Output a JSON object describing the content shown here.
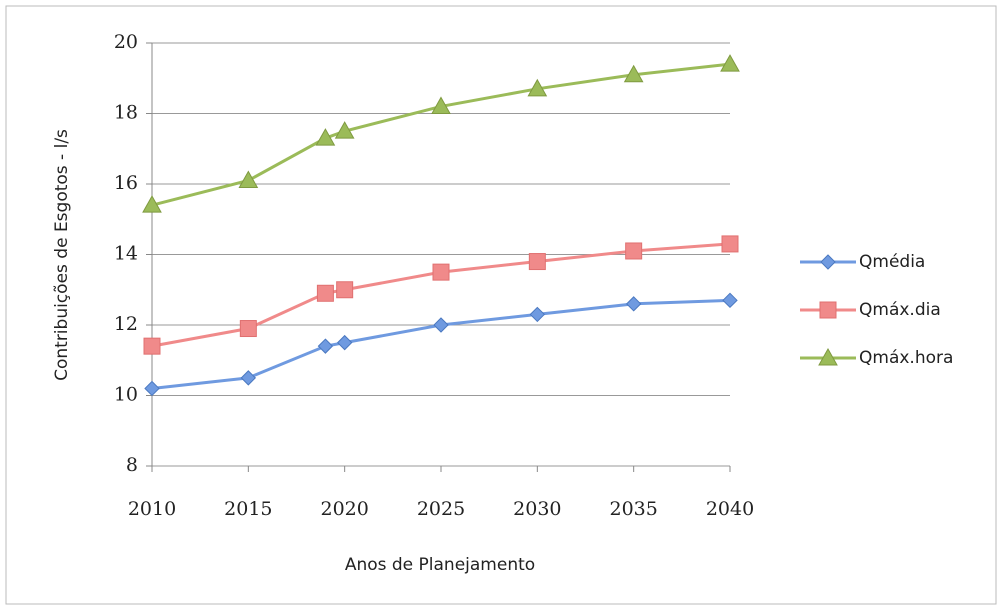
{
  "chart_data": {
    "type": "line",
    "y_label": "Contribuições de Esgotos - l/s",
    "x_label": "Anos de Planejamento",
    "x": [
      2010,
      2015,
      2019,
      2020,
      2025,
      2030,
      2035,
      2040
    ],
    "series": [
      {
        "name": "Qmédia",
        "color": "#6f9ae0",
        "marker": "diamond",
        "values": [
          10.2,
          10.5,
          11.4,
          11.5,
          12.0,
          12.3,
          12.6,
          12.7
        ]
      },
      {
        "name": "Qmáx.dia",
        "color": "#f08a8a",
        "marker": "square",
        "values": [
          11.4,
          11.9,
          12.9,
          13.0,
          13.5,
          13.8,
          14.1,
          14.3
        ]
      },
      {
        "name": "Qmáx.hora",
        "color": "#9bbb59",
        "marker": "triangle",
        "values": [
          15.4,
          16.1,
          17.3,
          17.5,
          18.2,
          18.7,
          19.1,
          19.4
        ]
      }
    ],
    "xlim": [
      2010,
      2040
    ],
    "xticks": [
      2010,
      2015,
      2020,
      2025,
      2030,
      2035,
      2040
    ],
    "ylim": [
      8,
      20
    ],
    "yticks": [
      8,
      10,
      12,
      14,
      16,
      18,
      20
    ],
    "grid": true,
    "legend": "right"
  }
}
